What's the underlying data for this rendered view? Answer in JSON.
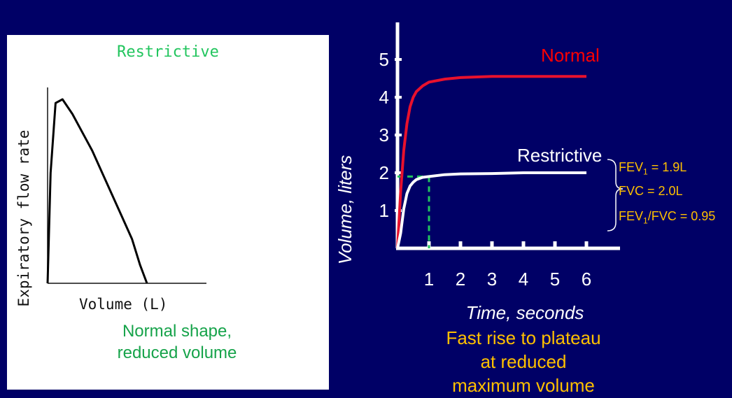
{
  "chart_data": [
    {
      "type": "line",
      "title": "Restrictive",
      "xlabel": "Volume (L)",
      "ylabel": "Expiratory flow rate",
      "caption": [
        "Normal shape,",
        "reduced volume"
      ],
      "colors": {
        "title": "#22c55e",
        "caption": "#16a34a",
        "curve": "#000000"
      },
      "series": [
        {
          "x": [
            0.0,
            0.03,
            0.08,
            0.15,
            0.25,
            0.35,
            0.45,
            0.55,
            0.65,
            0.75,
            0.85,
            0.93,
            1.0
          ],
          "y": [
            0.0,
            0.6,
            0.98,
            1.0,
            0.92,
            0.82,
            0.72,
            0.6,
            0.48,
            0.36,
            0.24,
            0.1,
            0.0
          ]
        }
      ]
    },
    {
      "type": "line",
      "xlabel": "Time, seconds",
      "ylabel": "Volume, liters",
      "x_ticks": [
        1,
        2,
        3,
        4,
        5,
        6
      ],
      "y_ticks": [
        1,
        2,
        3,
        4,
        5
      ],
      "xlim": [
        0,
        6
      ],
      "ylim": [
        0,
        5.5
      ],
      "series": [
        {
          "name": "Normal",
          "color": "#e8112d",
          "x": [
            0,
            0.1,
            0.2,
            0.3,
            0.4,
            0.5,
            0.6,
            0.8,
            1.0,
            1.5,
            2.0,
            3.0,
            4.0,
            5.0,
            6.0
          ],
          "y": [
            0,
            1.5,
            2.6,
            3.3,
            3.75,
            4.0,
            4.15,
            4.3,
            4.4,
            4.48,
            4.52,
            4.55,
            4.55,
            4.55,
            4.55
          ]
        },
        {
          "name": "Restrictive",
          "color": "#ffffff",
          "x": [
            0,
            0.1,
            0.2,
            0.3,
            0.4,
            0.5,
            0.6,
            0.8,
            1.0,
            1.5,
            2.0,
            3.0,
            4.0,
            5.0,
            6.0
          ],
          "y": [
            0,
            0.4,
            1.05,
            1.45,
            1.65,
            1.75,
            1.82,
            1.88,
            1.9,
            1.95,
            1.97,
            1.98,
            2.0,
            2.0,
            2.0
          ]
        }
      ],
      "reference_lines": {
        "fev1_time": 1,
        "fev1_volume": 1.9,
        "color": "#22c55e"
      },
      "annotations": {
        "fev1": {
          "label": "FEV",
          "sub": "1",
          "value": " = 1.9L"
        },
        "fvc": "FVC = 2.0L",
        "ratio": {
          "label_a": "FEV",
          "sub": "1",
          "label_b": "/FVC = 0.95"
        }
      },
      "caption": [
        "Fast rise to plateau",
        "at reduced",
        "maximum volume"
      ],
      "colors": {
        "axes": "#ffffff",
        "annotation": "#ffc000",
        "background": "#000066"
      }
    }
  ]
}
